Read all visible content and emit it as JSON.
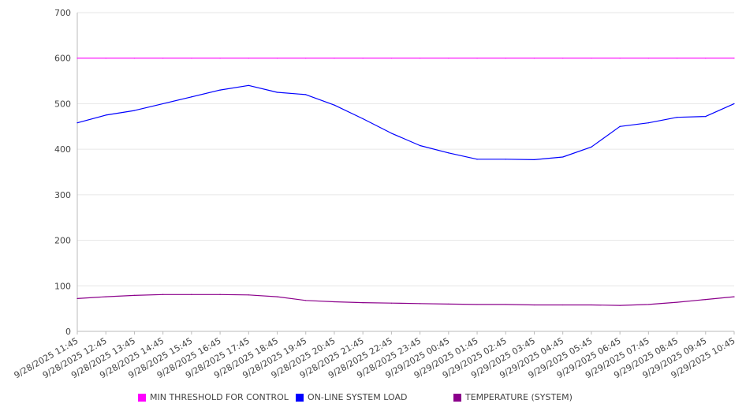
{
  "chart_data": {
    "type": "line",
    "title": "",
    "xlabel": "",
    "ylabel": "",
    "ylim": [
      0,
      700
    ],
    "yticks": [
      "0",
      "100",
      "200",
      "300",
      "400",
      "500",
      "600",
      "700"
    ],
    "grid": true,
    "legend_position": "bottom",
    "x": [
      "9/28/2025 11:45",
      "9/28/2025 12:45",
      "9/28/2025 13:45",
      "9/28/2025 14:45",
      "9/28/2025 15:45",
      "9/28/2025 16:45",
      "9/28/2025 17:45",
      "9/28/2025 18:45",
      "9/28/2025 19:45",
      "9/28/2025 20:45",
      "9/28/2025 21:45",
      "9/28/2025 22:45",
      "9/28/2025 23:45",
      "9/29/2025 00:45",
      "9/29/2025 01:45",
      "9/29/2025 02:45",
      "9/29/2025 03:45",
      "9/29/2025 04:45",
      "9/29/2025 05:45",
      "9/29/2025 06:45",
      "9/29/2025 07:45",
      "9/29/2025 08:45",
      "9/29/2025 09:45",
      "9/29/2025 10:45"
    ],
    "series": [
      {
        "name": "MIN THRESHOLD FOR CONTROL",
        "color": "#ff00ff",
        "values": [
          600,
          600,
          600,
          600,
          600,
          600,
          600,
          600,
          600,
          600,
          600,
          600,
          600,
          600,
          600,
          600,
          600,
          600,
          600,
          600,
          600,
          600,
          600,
          600
        ]
      },
      {
        "name": "ON-LINE SYSTEM LOAD",
        "color": "#0000ff",
        "values": [
          458,
          475,
          485,
          500,
          515,
          530,
          540,
          525,
          520,
          497,
          467,
          435,
          408,
          392,
          378,
          378,
          377,
          383,
          405,
          450,
          458,
          470,
          472,
          500
        ]
      },
      {
        "name": "TEMPERATURE (SYSTEM)",
        "color": "#8b008b",
        "values": [
          72,
          76,
          79,
          81,
          81,
          81,
          80,
          76,
          68,
          65,
          63,
          62,
          61,
          60,
          59,
          59,
          58,
          58,
          58,
          57,
          59,
          64,
          70,
          76
        ]
      }
    ]
  }
}
